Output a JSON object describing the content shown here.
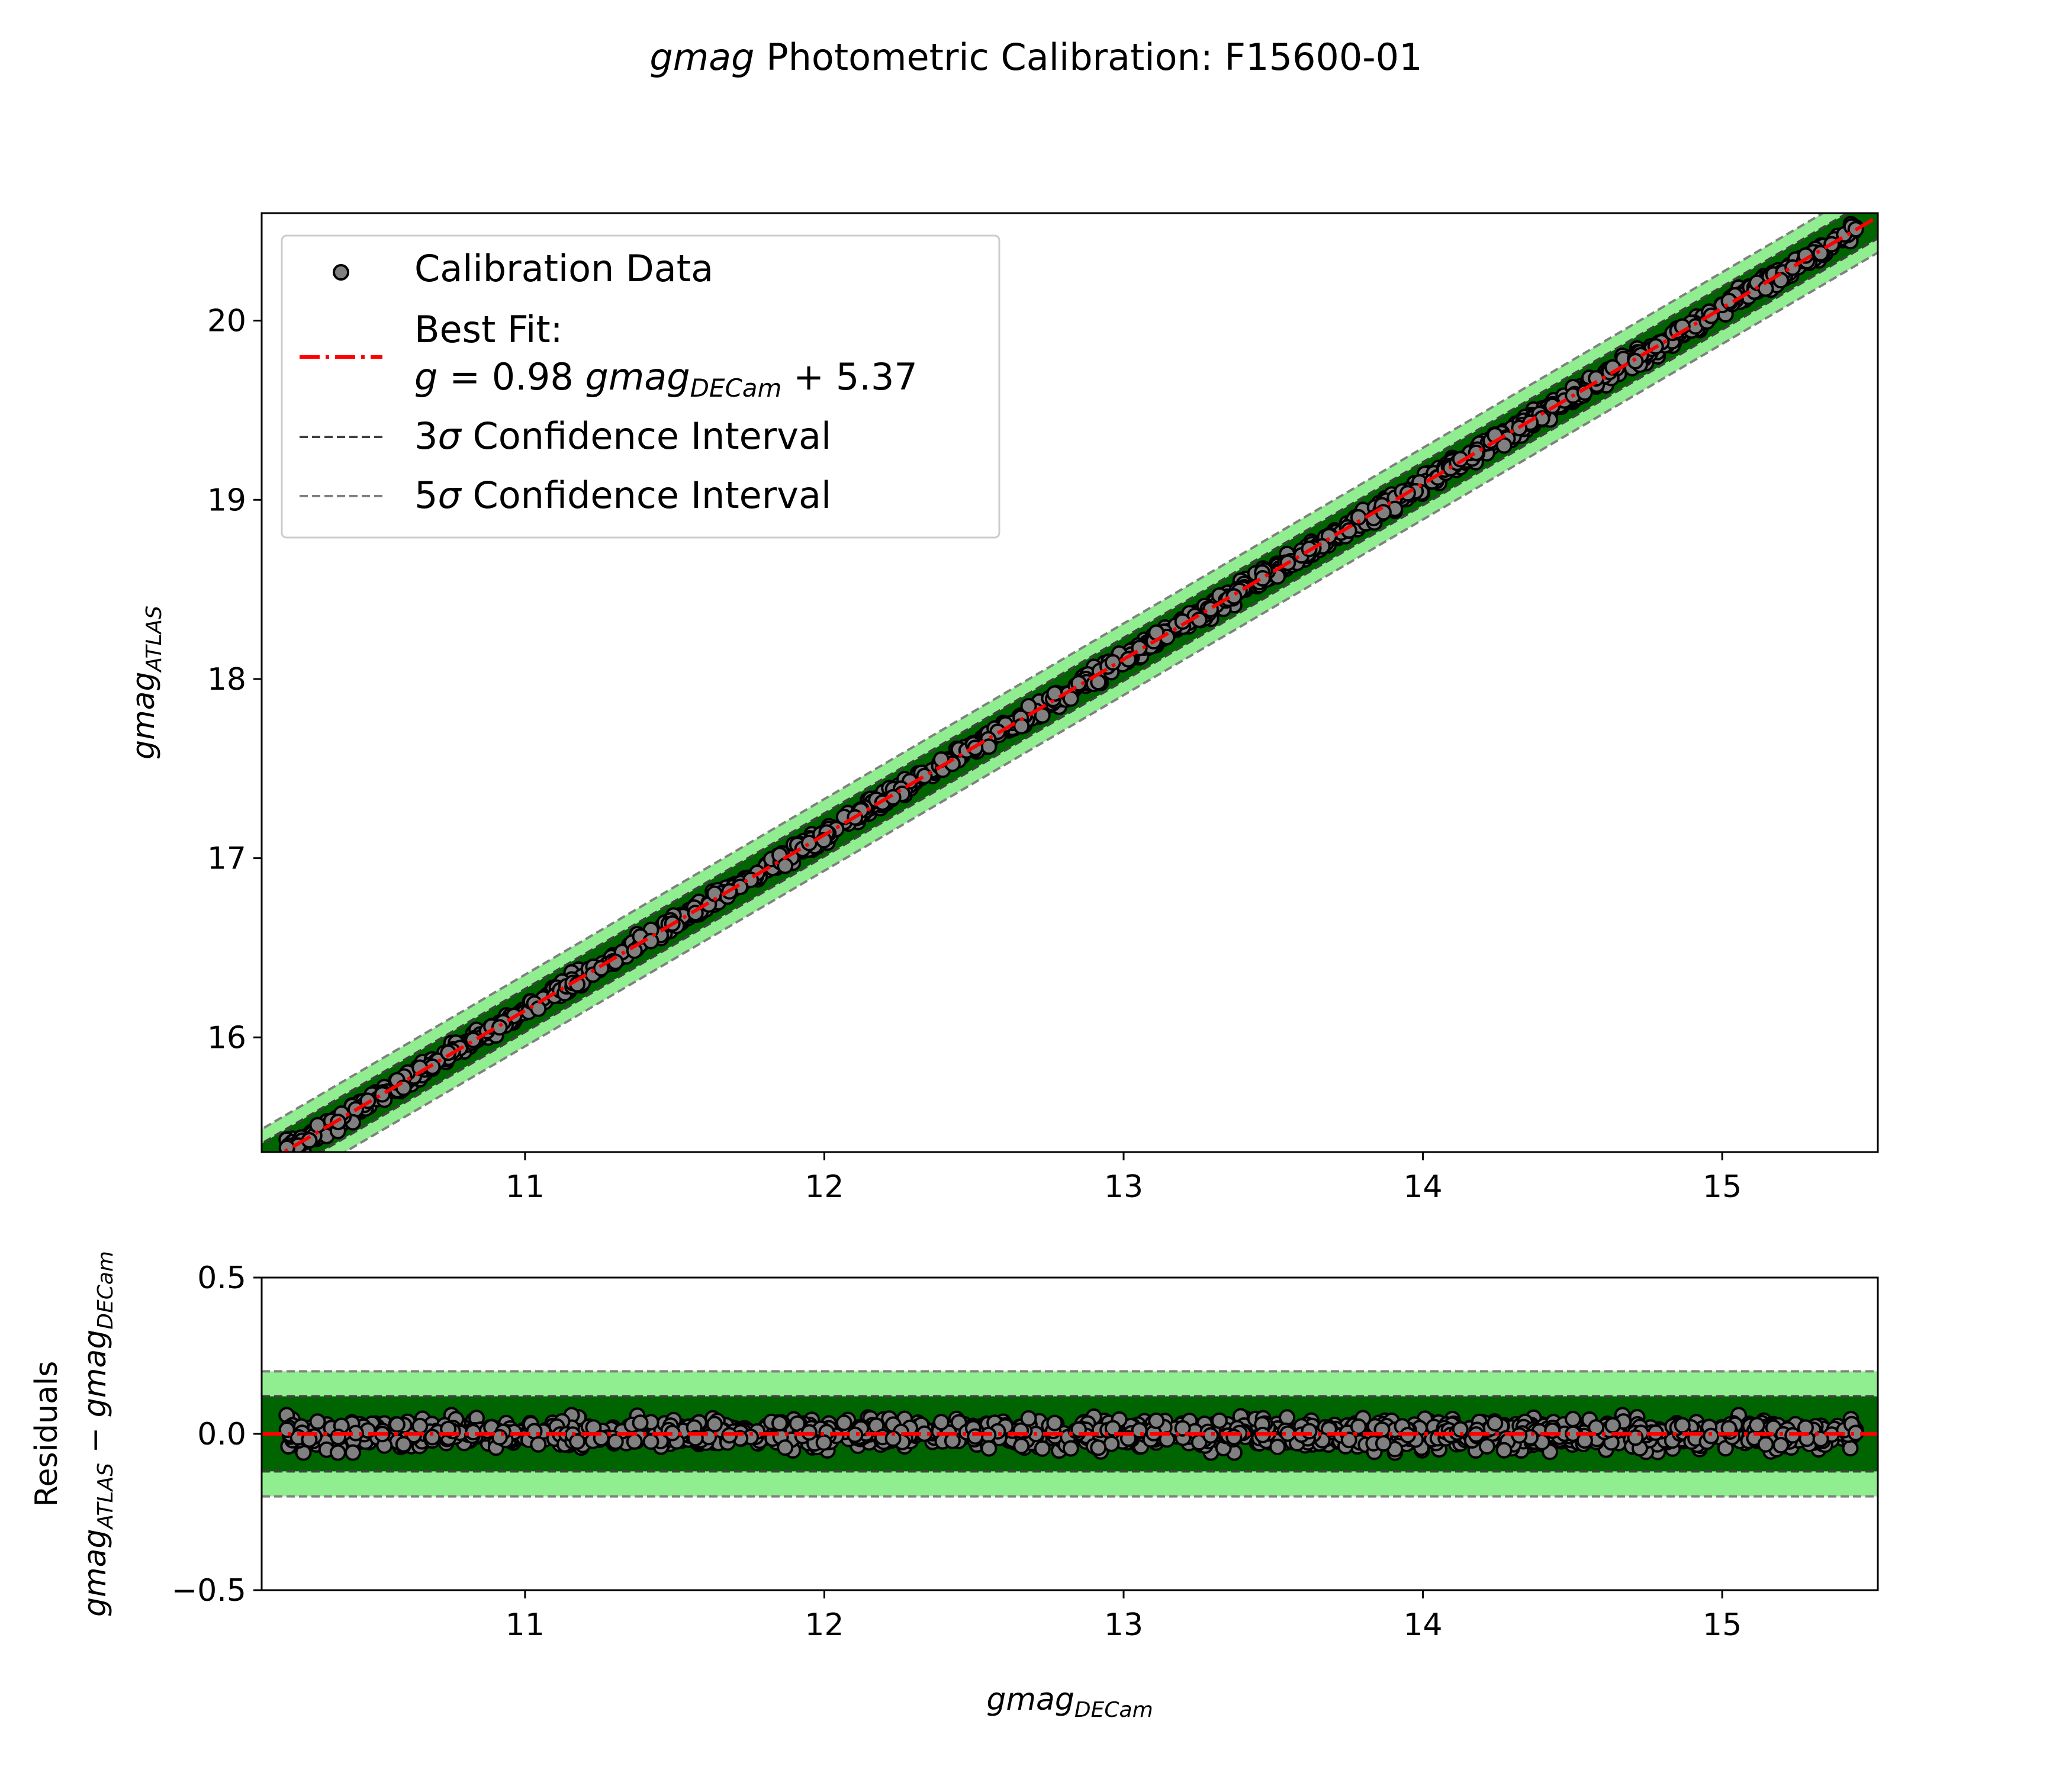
{
  "page": {
    "title_italic": "gmag",
    "title_rest": " Photometric Calibration: F15600-01"
  },
  "colors": {
    "band_5sigma": "#90ee90",
    "band_3sigma": "#006400",
    "fit_line": "#ff0000",
    "ci_3sigma": "#404040",
    "ci_5sigma": "#808080",
    "point_face": "#808080",
    "point_edge": "#000000"
  },
  "legend": {
    "data_label": "Calibration Data",
    "fit_label_line1": "Best Fit:",
    "fit_g": "g",
    "fit_eq_mid": " = 0.98 ",
    "fit_gmag": "gmag",
    "fit_sub": "DECam",
    "fit_eq_end": " + 5.37",
    "ci3_num": "3",
    "ci3_sigma": "σ",
    "ci3_text": " Confidence Interval",
    "ci5_num": "5",
    "ci5_sigma": "σ",
    "ci5_text": " Confidence Interval"
  },
  "labels": {
    "top_ylabel_main": "gmag",
    "top_ylabel_sub": "ATLAS",
    "bottom_ylabel_line1": "Residuals",
    "bottom_ylabel_main1": "gmag",
    "bottom_ylabel_sub1": "ATLAS",
    "bottom_ylabel_minus": " − ",
    "bottom_ylabel_main2": "gmag",
    "bottom_ylabel_sub2": "DECam",
    "xlabel_main": "gmag",
    "xlabel_sub": "DECam"
  },
  "chart_data": [
    {
      "type": "scatter",
      "panel": "calibration",
      "xlim": [
        10.12,
        15.52
      ],
      "ylim": [
        15.36,
        20.6
      ],
      "x_ticks": [
        11,
        12,
        13,
        14,
        15
      ],
      "y_ticks": [
        16,
        17,
        18,
        19,
        20
      ],
      "fit": {
        "slope": 0.98,
        "intercept": 5.37
      },
      "sigma": 0.04,
      "ci_3sigma_offset": 0.12,
      "ci_5sigma_offset": 0.2,
      "x_range": [
        10.2,
        15.45
      ],
      "n_points": 1500,
      "grid": false,
      "legend_position": "upper-left"
    },
    {
      "type": "scatter",
      "panel": "residuals",
      "xlim": [
        10.12,
        15.52
      ],
      "ylim": [
        -0.5,
        0.5
      ],
      "x_ticks": [
        11,
        12,
        13,
        14,
        15
      ],
      "y_ticks": [
        -0.5,
        0.0,
        0.5
      ],
      "y_tick_labels": [
        "−0.5",
        "0.0",
        "0.5"
      ],
      "zero_line": 0,
      "ci_3sigma_offset": 0.12,
      "ci_5sigma_offset": 0.2,
      "residual_spread": 0.06,
      "grid": false
    }
  ]
}
